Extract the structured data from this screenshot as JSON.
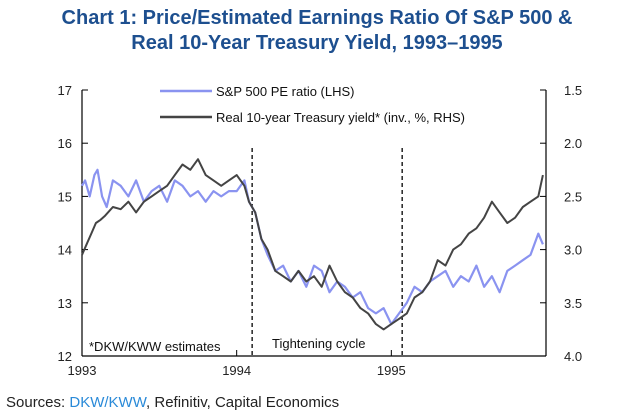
{
  "title_line1": "Chart 1: Price/Estimated Earnings Ratio Of S&P 500 &",
  "title_line2": "Real 10-Year Treasury Yield, 1993–1995",
  "source": {
    "prefix": "Sources: ",
    "highlight": "DKW/KWW",
    "rest": ", Refinitiv, Capital Economics"
  },
  "colors": {
    "pe": "#8a93f0",
    "yield": "#444444",
    "title": "#1d4f8f",
    "source_highlight": "#2a8ad8"
  },
  "chart_data": {
    "type": "line",
    "title": "Chart 1: Price/Estimated Earnings Ratio Of S&P 500 & Real 10-Year Treasury Yield, 1993–1995",
    "x_range": [
      1993.0,
      1996.0
    ],
    "x_ticks": [
      "1993",
      "1994",
      "1995"
    ],
    "x_tick_values": [
      1993,
      1994,
      1995
    ],
    "y_left": {
      "range": [
        12,
        17
      ],
      "ticks": [
        "12",
        "13",
        "14",
        "15",
        "16",
        "17"
      ]
    },
    "y_right": {
      "range": [
        4.0,
        1.5
      ],
      "inverted": true,
      "ticks": [
        "1.5",
        "2.0",
        "2.5",
        "3.0",
        "3.5",
        "4.0"
      ],
      "tick_values": [
        1.5,
        2.0,
        2.5,
        3.0,
        3.5,
        4.0
      ]
    },
    "series": [
      {
        "name": "S&P 500 PE ratio (LHS)",
        "axis": "left",
        "x": [
          1993.0,
          1993.02,
          1993.05,
          1993.08,
          1993.1,
          1993.13,
          1993.16,
          1993.2,
          1993.25,
          1993.3,
          1993.35,
          1993.4,
          1993.45,
          1993.5,
          1993.55,
          1993.6,
          1993.65,
          1993.7,
          1993.75,
          1993.8,
          1993.85,
          1993.9,
          1993.95,
          1994.0,
          1994.05,
          1994.08,
          1994.12,
          1994.16,
          1994.2,
          1994.25,
          1994.3,
          1994.35,
          1994.4,
          1994.45,
          1994.5,
          1994.55,
          1994.6,
          1994.65,
          1994.7,
          1994.75,
          1994.8,
          1994.85,
          1994.9,
          1994.95,
          1995.0,
          1995.05,
          1995.1,
          1995.15,
          1995.2,
          1995.25,
          1995.3,
          1995.35,
          1995.4,
          1995.45,
          1995.5,
          1995.55,
          1995.6,
          1995.65,
          1995.7,
          1995.75,
          1995.8,
          1995.85,
          1995.9,
          1995.95,
          1995.98
        ],
        "values": [
          15.2,
          15.3,
          15.0,
          15.4,
          15.5,
          15.0,
          14.8,
          15.3,
          15.2,
          15.0,
          15.3,
          14.9,
          15.1,
          15.2,
          14.9,
          15.3,
          15.2,
          15.0,
          15.1,
          14.9,
          15.1,
          15.0,
          15.1,
          15.1,
          15.3,
          14.9,
          14.7,
          14.2,
          13.9,
          13.6,
          13.7,
          13.4,
          13.6,
          13.3,
          13.7,
          13.6,
          13.2,
          13.4,
          13.3,
          13.1,
          13.2,
          12.9,
          12.8,
          12.9,
          12.6,
          12.8,
          13.0,
          13.3,
          13.2,
          13.4,
          13.5,
          13.6,
          13.3,
          13.5,
          13.4,
          13.7,
          13.3,
          13.5,
          13.2,
          13.6,
          13.7,
          13.8,
          13.9,
          14.3,
          14.1
        ]
      },
      {
        "name": "Real 10-year Treasury yield* (inv., %, RHS)",
        "axis": "right",
        "x": [
          1993.0,
          1993.03,
          1993.06,
          1993.09,
          1993.12,
          1993.15,
          1993.2,
          1993.25,
          1993.3,
          1993.35,
          1993.4,
          1993.45,
          1993.5,
          1993.55,
          1993.6,
          1993.65,
          1993.7,
          1993.75,
          1993.8,
          1993.85,
          1993.9,
          1993.95,
          1994.0,
          1994.05,
          1994.08,
          1994.12,
          1994.16,
          1994.2,
          1994.25,
          1994.3,
          1994.35,
          1994.4,
          1994.45,
          1994.5,
          1994.55,
          1994.6,
          1994.65,
          1994.7,
          1994.75,
          1994.8,
          1994.85,
          1994.9,
          1994.95,
          1995.0,
          1995.05,
          1995.1,
          1995.15,
          1995.2,
          1995.25,
          1995.3,
          1995.35,
          1995.4,
          1995.45,
          1995.5,
          1995.55,
          1995.6,
          1995.65,
          1995.7,
          1995.75,
          1995.8,
          1995.85,
          1995.9,
          1995.95,
          1995.98
        ],
        "values": [
          3.05,
          2.95,
          2.85,
          2.75,
          2.72,
          2.68,
          2.6,
          2.62,
          2.55,
          2.65,
          2.55,
          2.5,
          2.45,
          2.4,
          2.3,
          2.2,
          2.25,
          2.15,
          2.3,
          2.35,
          2.4,
          2.35,
          2.3,
          2.4,
          2.55,
          2.65,
          2.9,
          3.0,
          3.2,
          3.25,
          3.3,
          3.2,
          3.3,
          3.25,
          3.35,
          3.15,
          3.3,
          3.4,
          3.45,
          3.55,
          3.6,
          3.7,
          3.75,
          3.7,
          3.65,
          3.6,
          3.45,
          3.4,
          3.3,
          3.1,
          3.15,
          3.0,
          2.95,
          2.85,
          2.8,
          2.7,
          2.55,
          2.65,
          2.75,
          2.7,
          2.6,
          2.55,
          2.5,
          2.3
        ]
      }
    ],
    "legend": [
      "S&P 500 PE ratio (LHS)",
      "Real 10-year Treasury yield* (inv., %, RHS)"
    ],
    "legend_position": "top-center",
    "annotations": [
      "*DKW/KWW estimates",
      "Tightening cycle"
    ],
    "vlines": [
      1994.1,
      1995.07
    ],
    "grid": false
  }
}
